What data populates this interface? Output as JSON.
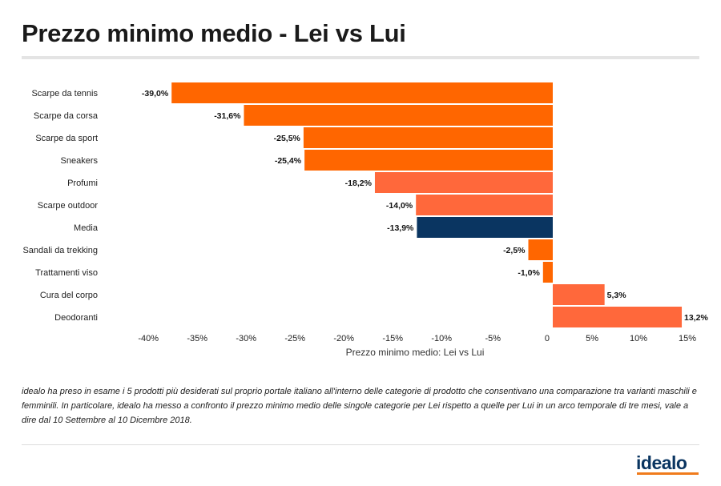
{
  "title": "Prezzo minimo medio - Lei vs Lui",
  "chart_data": {
    "type": "bar",
    "orientation": "horizontal",
    "title": "Prezzo minimo medio - Lei vs Lui",
    "xlabel": "Prezzo minimo medio: Lei vs Lui",
    "ylabel": "",
    "xlim": [
      -40,
      15
    ],
    "xticks": [
      -40,
      -35,
      -30,
      -25,
      -20,
      -15,
      -10,
      -5,
      0,
      5,
      10,
      15
    ],
    "xtick_labels": [
      "-40%",
      "-35%",
      "-30%",
      "-25%",
      "-20%",
      "-15%",
      "-10%",
      "-5%",
      "0",
      "5%",
      "10%",
      "15%"
    ],
    "categories": [
      "Scarpe da tennis",
      "Scarpe da corsa",
      "Scarpe da sport",
      "Sneakers",
      "Profumi",
      "Scarpe outdoor",
      "Media",
      "Sandali da trekking",
      "Trattamenti viso",
      "Cura del corpo",
      "Deodoranti"
    ],
    "values": [
      -39.0,
      -31.6,
      -25.5,
      -25.4,
      -18.2,
      -14.0,
      -13.9,
      -2.5,
      -1.0,
      5.3,
      13.2
    ],
    "data_labels": [
      "-39,0%",
      "-31,6%",
      "-25,5%",
      "-25,4%",
      "-18,2%",
      "-14,0%",
      "-13,9%",
      "-2,5%",
      "-1,0%",
      "5,3%",
      "13,2%"
    ],
    "colors": [
      "#ff6600",
      "#ff6600",
      "#ff6600",
      "#ff6600",
      "#ff683b",
      "#ff683b",
      "#0a3561",
      "#ff6600",
      "#ff6600",
      "#ff683b",
      "#ff683b"
    ],
    "grid": false,
    "legend": "none"
  },
  "note": "idealo ha preso in esame i 5 prodotti più desiderati sul proprio portale italiano all'interno delle categorie di prodotto che consentivano una comparazione tra varianti maschili e femminili.  In particolare, idealo ha messo a confronto il prezzo minimo medio delle singole categorie per Lei rispetto a quelle per Lui in un arco temporale di tre mesi, vale a dire dal 10 Settembre al 10 Dicembre 2018.",
  "logo": "idealo"
}
